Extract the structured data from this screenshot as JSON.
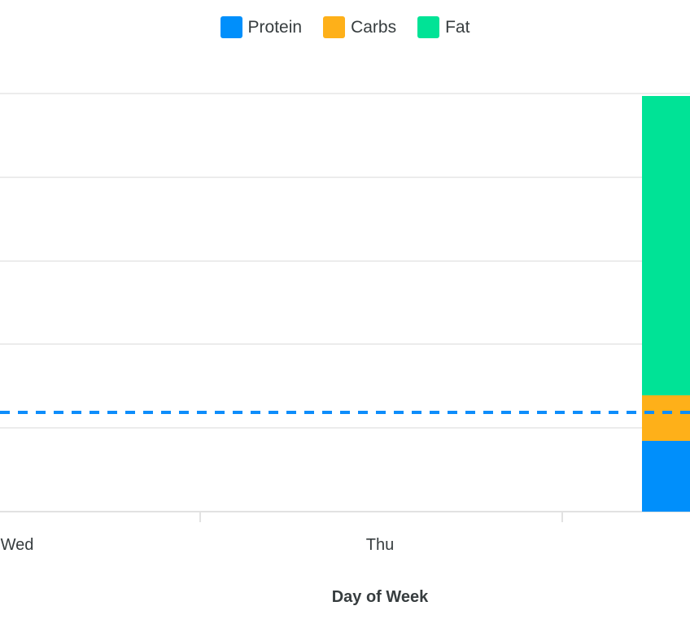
{
  "legend": {
    "items": [
      {
        "label": "Protein",
        "color": "#008FFB"
      },
      {
        "label": "Carbs",
        "color": "#FEB019"
      },
      {
        "label": "Fat",
        "color": "#00E396"
      }
    ],
    "position": "top"
  },
  "colors": {
    "protein_blue": "#008FFB",
    "carbs_orange": "#FEB019",
    "fat_green": "#00E396",
    "annotation_blue": "#0D8DFB",
    "gridline_gray": "#ECECEC",
    "axis_gray": "#E2E2E2",
    "label_gray": "#373D3F"
  },
  "chart_data": {
    "type": "bar",
    "stacked": true,
    "title": "",
    "xlabel": "Day of Week",
    "ylabel": "",
    "categories": [
      "Wed",
      "Thu",
      ""
    ],
    "series": [
      {
        "name": "Protein",
        "color": "#008FFB",
        "values": [
          0,
          0,
          85
        ]
      },
      {
        "name": "Carbs",
        "color": "#FEB019",
        "values": [
          0,
          0,
          54
        ]
      },
      {
        "name": "Fat",
        "color": "#00E396",
        "values": [
          0,
          0,
          358
        ]
      }
    ],
    "annotation_line": {
      "value": 119,
      "style": "dashed",
      "color": "#008FFB"
    },
    "ylim": [
      0,
      500
    ],
    "y_gridline_step": 100,
    "y_axis_labels_visible": false,
    "grid": "horizontal",
    "legend_position": "top",
    "crop_note": "view is cropped: left y-axis labels and right bar/category label are outside the frame; 'Wed' label partially clipped at left edge"
  }
}
